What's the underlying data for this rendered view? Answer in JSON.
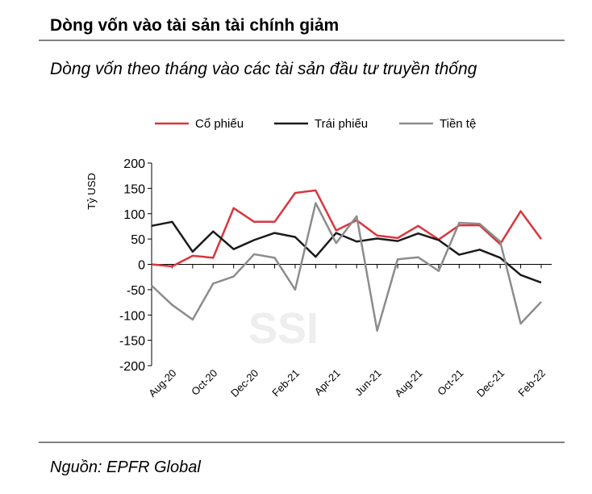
{
  "chart_data": {
    "type": "line",
    "title": "Dòng vốn vào tài sản tài chính giảm",
    "subtitle": "Dòng vốn theo tháng vào các tài sản đầu tư truyền thống",
    "y_label": "Tỷ USD",
    "watermark": "SSI",
    "source": "Nguồn: EPFR Global",
    "categories": [
      null,
      "Aug-20",
      null,
      "Oct-20",
      null,
      "Dec-20",
      null,
      "Feb-21",
      null,
      "Apr-21",
      null,
      "Jun-21",
      null,
      "Aug-21",
      null,
      "Oct-21",
      null,
      "Dec-21",
      null,
      "Feb-22"
    ],
    "series": [
      {
        "name": "Cổ phiếu",
        "color": "#d9363e",
        "values": [
          0,
          -4,
          17,
          13,
          111,
          84,
          84,
          141,
          146,
          67,
          87,
          57,
          52,
          76,
          49,
          77,
          77,
          40,
          105,
          50
        ]
      },
      {
        "name": "Trái phiếu",
        "color": "#1a1a1a",
        "values": [
          76,
          84,
          25,
          65,
          30,
          48,
          62,
          54,
          15,
          62,
          45,
          51,
          46,
          61,
          48,
          19,
          29,
          13,
          -21,
          -36
        ]
      },
      {
        "name": "Tiền tệ",
        "color": "#8c8c8c",
        "values": [
          -42,
          -80,
          -109,
          -38,
          -24,
          20,
          13,
          -50,
          121,
          42,
          95,
          -131,
          10,
          14,
          -13,
          82,
          80,
          45,
          -117,
          -74
        ]
      }
    ],
    "ylim": [
      -200,
      200
    ],
    "yticks": [
      -200,
      -150,
      -100,
      -50,
      0,
      50,
      100,
      150,
      200
    ],
    "legend": "top"
  }
}
